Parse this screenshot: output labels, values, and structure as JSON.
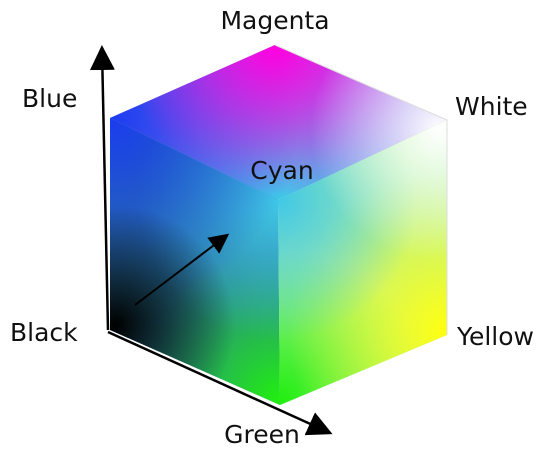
{
  "labels": {
    "magenta": "Magenta",
    "blue": "Blue",
    "white": "White",
    "cyan": "Cyan",
    "black": "Black",
    "yellow": "Yellow",
    "green": "Green"
  }
}
